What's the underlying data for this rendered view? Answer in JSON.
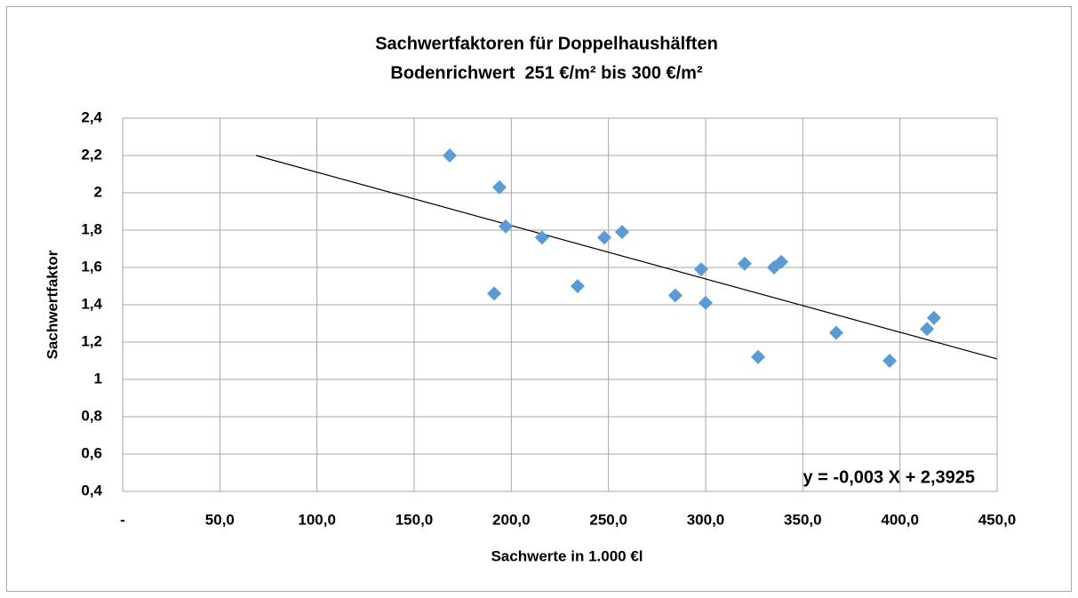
{
  "chart_data": {
    "type": "scatter",
    "title": "Sachwertfaktoren für Doppelhaushälften",
    "subtitle": "Bodenrichwert  251 €/m² bis 300 €/m²",
    "x_label": "Sachwerte in 1.000 €l",
    "y_label": "Sachwertfaktor",
    "annotation": "y = -0,003 X + 2,3925",
    "series": [
      {
        "name": "Sachwertfaktor",
        "color": "#5b9bd5",
        "x": [
          168.3,
          193.9,
          197.1,
          191.2,
          215.8,
          234.1,
          247.9,
          257.0,
          284.4,
          297.7,
          300.0,
          320.1,
          327.0,
          335.2,
          338.9,
          367.2,
          394.7,
          413.9,
          417.5
        ],
        "values": [
          2.2,
          2.03,
          1.82,
          1.46,
          1.76,
          1.5,
          1.76,
          1.79,
          1.45,
          1.59,
          1.41,
          1.62,
          1.12,
          1.6,
          1.63,
          1.25,
          1.1,
          1.27,
          1.33
        ]
      }
    ],
    "trendline": {
      "color": "#000000",
      "x": [
        68.6,
        450
      ],
      "values": [
        2.2,
        1.11
      ]
    },
    "xlim": [
      0,
      450
    ],
    "xticks": [
      {
        "value": 0,
        "label": "-"
      },
      {
        "value": 50,
        "label": "50,0"
      },
      {
        "value": 100,
        "label": "100,0"
      },
      {
        "value": 150,
        "label": "150,0"
      },
      {
        "value": 200,
        "label": "200,0"
      },
      {
        "value": 250,
        "label": "250,0"
      },
      {
        "value": 300,
        "label": "300,0"
      },
      {
        "value": 350,
        "label": "350,0"
      },
      {
        "value": 400,
        "label": "400,0"
      },
      {
        "value": 450,
        "label": "450,0"
      }
    ],
    "ylim": [
      0.4,
      2.4
    ],
    "yticks": [
      {
        "value": 0.4,
        "label": "0,4"
      },
      {
        "value": 0.6,
        "label": "0,6"
      },
      {
        "value": 0.8,
        "label": "0,8"
      },
      {
        "value": 1,
        "label": "1"
      },
      {
        "value": 1.2,
        "label": "1,2"
      },
      {
        "value": 1.4,
        "label": "1,4"
      },
      {
        "value": 1.6,
        "label": "1,6"
      },
      {
        "value": 1.8,
        "label": "1,8"
      },
      {
        "value": 2,
        "label": "2"
      },
      {
        "value": 2.2,
        "label": "2,2"
      },
      {
        "value": 2.4,
        "label": "2,4"
      }
    ],
    "grid": true
  }
}
